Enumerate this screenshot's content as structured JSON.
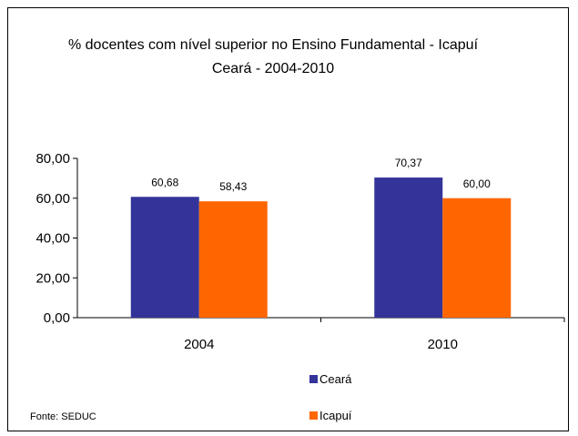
{
  "chart_data": {
    "type": "bar",
    "title_line1": "% docentes com nível  superior no Ensino Fundamental - Icapuí",
    "title_line2": "Ceará - 2004-2010",
    "categories": [
      "2004",
      "2010"
    ],
    "series": [
      {
        "name": "Ceará",
        "values": [
          60.68,
          70.37
        ],
        "labels": [
          "60,68",
          "70,37"
        ],
        "color": "#333399"
      },
      {
        "name": "Icapuí",
        "values": [
          58.43,
          60.0
        ],
        "labels": [
          "58,43",
          "60,00"
        ],
        "color": "#FF6600"
      }
    ],
    "ylim": [
      0,
      80
    ],
    "yticks": [
      0,
      20,
      40,
      60,
      80
    ],
    "ytick_labels": [
      "0,00",
      "20,00",
      "40,00",
      "60,00",
      "80,00"
    ],
    "grid": false,
    "legend_position": "bottom-center",
    "source": "Fonte: SEDUC"
  }
}
